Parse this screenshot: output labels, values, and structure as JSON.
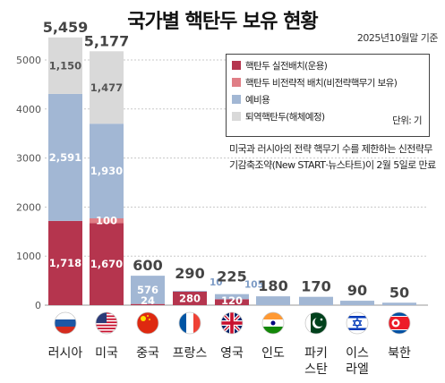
{
  "title": "국가별 핵탄두 보유 현황",
  "date": "2025년10월말 기준",
  "unit": "단위: 기",
  "note": "미국과 러시아의 전략 핵무기 수를 제한하는 신전략무기감축조약(New START·뉴스타트)이 2월 5일로 만료",
  "colors": {
    "deployed": "#b5354e",
    "non_deployed": "#e07e86",
    "reserve": "#a2b7d4",
    "retired": "#d9d9d9"
  },
  "chart_data": {
    "type": "bar",
    "stacked": true,
    "categories": [
      "러시아",
      "미국",
      "중국",
      "프랑스",
      "영국",
      "인도",
      "파키스탄",
      "이스라엘",
      "북한"
    ],
    "series": [
      {
        "name": "핵탄두 실전배치(운용)",
        "key": "deployed",
        "values": [
          1718,
          1670,
          24,
          280,
          120,
          0,
          0,
          0,
          0
        ]
      },
      {
        "name": "핵탄두 비전략적 배치(비전략핵무기 보유)",
        "key": "non_deployed",
        "values": [
          0,
          100,
          0,
          0,
          0,
          0,
          0,
          0,
          0
        ]
      },
      {
        "name": "예비용",
        "key": "reserve",
        "values": [
          2591,
          1930,
          576,
          10,
          105,
          180,
          170,
          90,
          50
        ]
      },
      {
        "name": "퇴역핵탄두(해체예정)",
        "key": "retired",
        "values": [
          1150,
          1477,
          0,
          0,
          0,
          0,
          0,
          0,
          0
        ]
      }
    ],
    "totals": [
      5459,
      5177,
      600,
      290,
      225,
      180,
      170,
      90,
      50
    ],
    "category_labels": [
      "러시아",
      "미국",
      "중국",
      "프랑스",
      "영국",
      "인도",
      "파키\n스탄",
      "이스\n라엘",
      "북한"
    ],
    "flags": [
      "russia-flag",
      "usa-flag",
      "china-flag",
      "france-flag",
      "uk-flag",
      "india-flag",
      "pakistan-flag",
      "israel-flag",
      "north-korea-flag"
    ],
    "ylim": [
      0,
      5500
    ],
    "yticks": [
      0,
      1000,
      2000,
      3000,
      4000,
      5000
    ],
    "grid": true,
    "legend_position": "top-right",
    "segment_labels": [
      {
        "cat": 0,
        "key": "deployed",
        "text": "1,718"
      },
      {
        "cat": 0,
        "key": "reserve",
        "text": "2,591"
      },
      {
        "cat": 0,
        "key": "retired",
        "text": "1,150"
      },
      {
        "cat": 1,
        "key": "deployed",
        "text": "1,670"
      },
      {
        "cat": 1,
        "key": "non_deployed",
        "text": "100"
      },
      {
        "cat": 1,
        "key": "reserve",
        "text": "1,930"
      },
      {
        "cat": 1,
        "key": "retired",
        "text": "1,477"
      },
      {
        "cat": 2,
        "key": "deployed",
        "text": "24"
      },
      {
        "cat": 2,
        "key": "reserve",
        "text": "576"
      },
      {
        "cat": 3,
        "key": "deployed",
        "text": "280"
      },
      {
        "cat": 3,
        "key": "reserve",
        "text": "10"
      },
      {
        "cat": 4,
        "key": "deployed",
        "text": "120"
      },
      {
        "cat": 4,
        "key": "reserve",
        "text": "105"
      }
    ],
    "total_labels": [
      "5,459",
      "5,177",
      "600",
      "290",
      "225",
      "180",
      "170",
      "90",
      "50"
    ]
  }
}
